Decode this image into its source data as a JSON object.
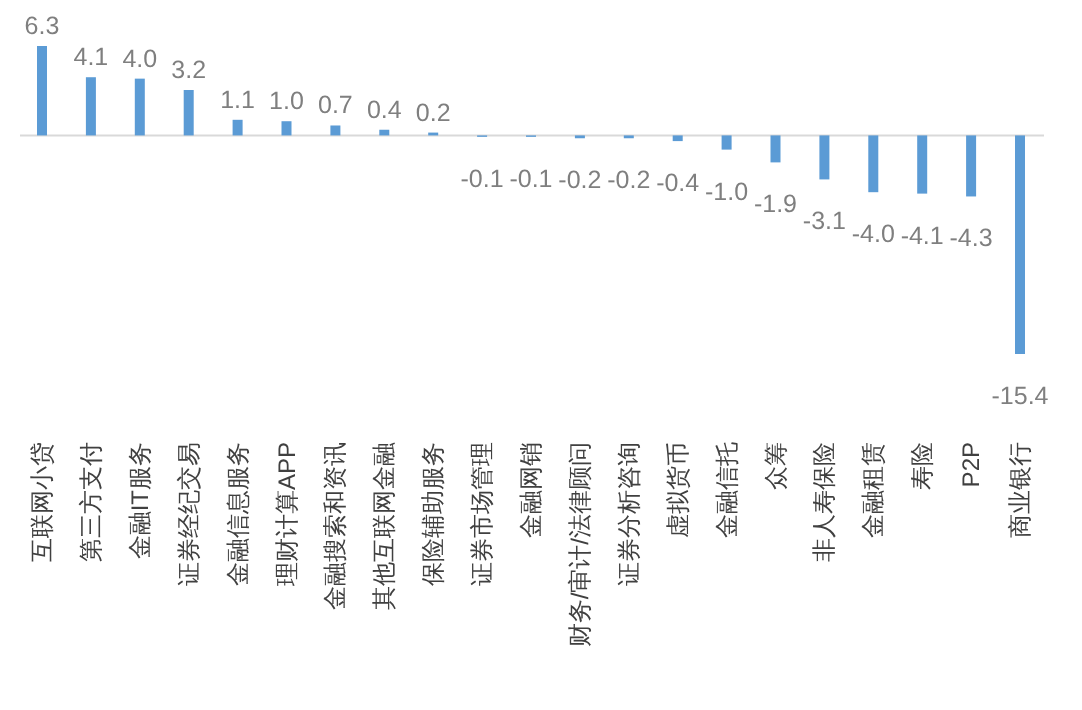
{
  "chart_data": {
    "type": "bar",
    "categories": [
      "互联网小贷",
      "第三方支付",
      "金融IT服务",
      "证券经纪交易",
      "金融信息服务",
      "理财计算APP",
      "金融搜索和资讯",
      "其他互联网金融",
      "保险辅助服务",
      "证券市场管理",
      "金融网销",
      "财务/审计/法律顾问",
      "证券分析咨询",
      "虚拟货币",
      "金融信托",
      "众筹",
      "非人寿保险",
      "金融租赁",
      "寿险",
      "P2P",
      "商业银行"
    ],
    "values": [
      6.3,
      4.1,
      4.0,
      3.2,
      1.1,
      1.0,
      0.7,
      0.4,
      0.2,
      -0.1,
      -0.1,
      -0.2,
      -0.2,
      -0.4,
      -1.0,
      -1.9,
      -3.1,
      -4.0,
      -4.1,
      -4.3,
      -15.4
    ],
    "value_labels": [
      "6.3",
      "4.1",
      "4.0",
      "3.2",
      "1.1",
      "1.0",
      "0.7",
      "0.4",
      "0.2",
      "-0.1",
      "-0.1",
      "-0.2",
      "-0.2",
      "-0.4",
      "-1.0",
      "-1.9",
      "-3.1",
      "-4.0",
      "-4.1",
      "-4.3",
      "-15.4"
    ],
    "color": "#5b9bd5"
  }
}
